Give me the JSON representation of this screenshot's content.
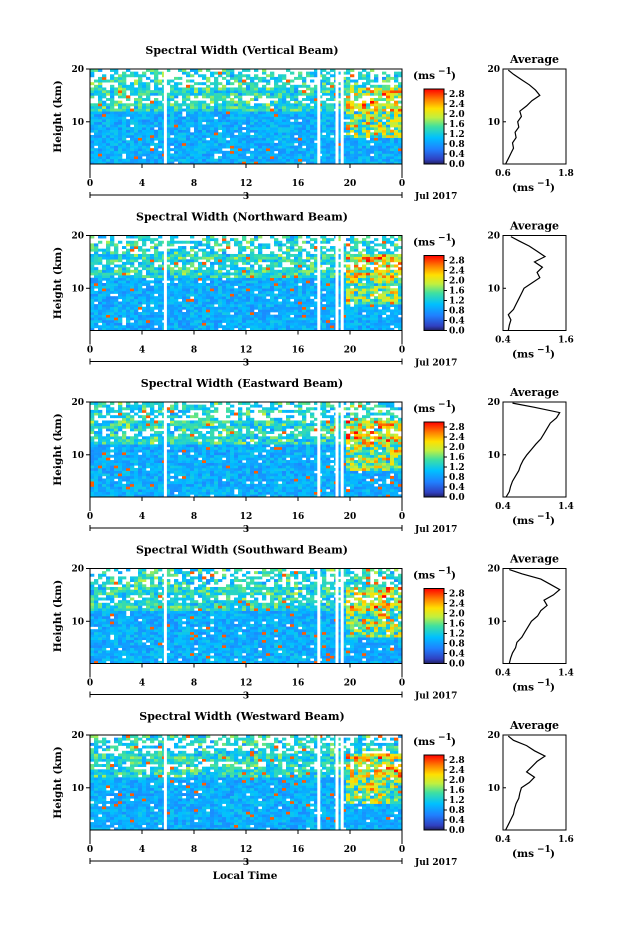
{
  "chart_data": [
    {
      "type": "heatmap",
      "title": "Spectral Width (Vertical Beam)",
      "ylabel": "Height (km)",
      "ylim": [
        2,
        20
      ],
      "yticks": [
        10,
        20
      ],
      "xlim": [
        0,
        24
      ],
      "xticks": [
        "0",
        "4",
        "8",
        "12",
        "16",
        "20",
        "0"
      ],
      "xmark": "3",
      "date_label": "Jul 2017",
      "colorbar": {
        "unit": "(ms",
        "unit_exp": "−1",
        "unit_close": ")",
        "ticks": [
          "0.0",
          "0.4",
          "0.8",
          "1.2",
          "1.6",
          "2.0",
          "2.4",
          "2.8"
        ],
        "range": [
          0,
          3
        ]
      },
      "gaps_hours": [
        5.8,
        17.6,
        19.0,
        19.4
      ],
      "profile": {
        "title": "Average",
        "xlabel": "(ms",
        "xlabel_exp": "−1",
        "xlabel_close": ")",
        "xlim": [
          0.6,
          1.8
        ],
        "xticks": [
          "0.6",
          "1.8"
        ],
        "yticks": [
          10,
          20
        ],
        "points": [
          [
            0.65,
            2
          ],
          [
            0.7,
            3
          ],
          [
            0.75,
            4
          ],
          [
            0.8,
            5
          ],
          [
            0.78,
            6
          ],
          [
            0.85,
            7
          ],
          [
            0.83,
            8
          ],
          [
            0.9,
            9
          ],
          [
            0.88,
            10
          ],
          [
            0.95,
            11
          ],
          [
            0.92,
            12
          ],
          [
            1.05,
            13
          ],
          [
            1.15,
            14
          ],
          [
            1.3,
            15
          ],
          [
            1.22,
            16
          ],
          [
            1.1,
            17
          ],
          [
            0.95,
            18
          ],
          [
            0.8,
            19
          ],
          [
            0.7,
            19.8
          ]
        ]
      }
    },
    {
      "type": "heatmap",
      "title": "Spectral Width (Northward Beam)",
      "ylabel": "Height (km)",
      "ylim": [
        2,
        20
      ],
      "yticks": [
        10,
        20
      ],
      "xlim": [
        0,
        24
      ],
      "xticks": [
        "0",
        "4",
        "8",
        "12",
        "16",
        "20",
        "0"
      ],
      "xmark": "3",
      "date_label": "Jul 2017",
      "colorbar": {
        "unit": "(ms",
        "unit_exp": "−1",
        "unit_close": ")",
        "ticks": [
          "0.0",
          "0.4",
          "0.8",
          "1.2",
          "1.6",
          "2.0",
          "2.4",
          "2.8"
        ],
        "range": [
          0,
          3
        ]
      },
      "gaps_hours": [
        5.8,
        17.6,
        19.0,
        19.4
      ],
      "profile": {
        "title": "Average",
        "xlabel": "(ms",
        "xlabel_exp": "−1",
        "xlabel_close": ")",
        "xlim": [
          0.4,
          1.6
        ],
        "xticks": [
          "0.4",
          "1.6"
        ],
        "yticks": [
          10,
          20
        ],
        "points": [
          [
            0.5,
            2
          ],
          [
            0.52,
            3
          ],
          [
            0.55,
            4
          ],
          [
            0.5,
            5
          ],
          [
            0.6,
            6
          ],
          [
            0.65,
            7
          ],
          [
            0.7,
            8
          ],
          [
            0.75,
            9
          ],
          [
            0.8,
            10
          ],
          [
            0.95,
            11
          ],
          [
            1.1,
            12
          ],
          [
            1.05,
            13
          ],
          [
            1.15,
            14
          ],
          [
            1.0,
            15
          ],
          [
            1.2,
            16
          ],
          [
            1.05,
            17
          ],
          [
            0.9,
            18
          ],
          [
            0.7,
            19
          ],
          [
            0.55,
            19.8
          ]
        ]
      }
    },
    {
      "type": "heatmap",
      "title": "Spectral Width (Eastward Beam)",
      "ylabel": "Height (km)",
      "ylim": [
        2,
        20
      ],
      "yticks": [
        10,
        20
      ],
      "xlim": [
        0,
        24
      ],
      "xticks": [
        "0",
        "4",
        "8",
        "12",
        "16",
        "20",
        "0"
      ],
      "xmark": "3",
      "date_label": "Jul 2017",
      "colorbar": {
        "unit": "(ms",
        "unit_exp": "−1",
        "unit_close": ")",
        "ticks": [
          "0.0",
          "0.4",
          "0.8",
          "1.2",
          "1.6",
          "2.0",
          "2.4",
          "2.8"
        ],
        "range": [
          0,
          3
        ]
      },
      "gaps_hours": [
        5.8,
        17.6,
        19.0,
        19.4
      ],
      "profile": {
        "title": "Average",
        "xlabel": "(ms",
        "xlabel_exp": "−1",
        "xlabel_close": ")",
        "xlim": [
          0.4,
          1.4
        ],
        "xticks": [
          "0.4",
          "1.4"
        ],
        "yticks": [
          10,
          20
        ],
        "points": [
          [
            0.45,
            2
          ],
          [
            0.5,
            3
          ],
          [
            0.52,
            4
          ],
          [
            0.55,
            5
          ],
          [
            0.6,
            6
          ],
          [
            0.65,
            7
          ],
          [
            0.68,
            8
          ],
          [
            0.72,
            9
          ],
          [
            0.78,
            10
          ],
          [
            0.85,
            11
          ],
          [
            0.92,
            12
          ],
          [
            1.0,
            13
          ],
          [
            1.05,
            14
          ],
          [
            1.1,
            15
          ],
          [
            1.15,
            16
          ],
          [
            1.25,
            17
          ],
          [
            1.3,
            18
          ],
          [
            0.9,
            19
          ],
          [
            0.55,
            19.8
          ]
        ]
      }
    },
    {
      "type": "heatmap",
      "title": "Spectral Width (Southward Beam)",
      "ylabel": "Height (km)",
      "ylim": [
        2,
        20
      ],
      "yticks": [
        10,
        20
      ],
      "xlim": [
        0,
        24
      ],
      "xticks": [
        "0",
        "4",
        "8",
        "12",
        "16",
        "20",
        "0"
      ],
      "xmark": "3",
      "date_label": "Jul 2017",
      "colorbar": {
        "unit": "(ms",
        "unit_exp": "−1",
        "unit_close": ")",
        "ticks": [
          "0.0",
          "0.4",
          "0.8",
          "1.2",
          "1.6",
          "2.0",
          "2.4",
          "2.8"
        ],
        "range": [
          0,
          3
        ]
      },
      "gaps_hours": [
        5.8,
        17.6,
        19.0,
        19.4
      ],
      "profile": {
        "title": "Average",
        "xlabel": "(ms",
        "xlabel_exp": "−1",
        "xlabel_close": ")",
        "xlim": [
          0.4,
          1.4
        ],
        "xticks": [
          "0.4",
          "1.4"
        ],
        "yticks": [
          10,
          20
        ],
        "points": [
          [
            0.5,
            2
          ],
          [
            0.52,
            3
          ],
          [
            0.55,
            4
          ],
          [
            0.6,
            5
          ],
          [
            0.62,
            6
          ],
          [
            0.7,
            7
          ],
          [
            0.75,
            8
          ],
          [
            0.8,
            9
          ],
          [
            0.85,
            10
          ],
          [
            0.95,
            11
          ],
          [
            1.0,
            12
          ],
          [
            1.1,
            13
          ],
          [
            1.05,
            14
          ],
          [
            1.2,
            15
          ],
          [
            1.3,
            16
          ],
          [
            1.15,
            17
          ],
          [
            1.0,
            18
          ],
          [
            0.7,
            19
          ],
          [
            0.5,
            19.8
          ]
        ]
      }
    },
    {
      "type": "heatmap",
      "title": "Spectral Width (Westward Beam)",
      "ylabel": "Height (km)",
      "ylim": [
        2,
        20
      ],
      "yticks": [
        10,
        20
      ],
      "xlim": [
        0,
        24
      ],
      "xticks": [
        "0",
        "4",
        "8",
        "12",
        "16",
        "20",
        "0"
      ],
      "xmark": "3",
      "date_label": "Jul 2017",
      "colorbar": {
        "unit": "(ms",
        "unit_exp": "−1",
        "unit_close": ")",
        "ticks": [
          "0.0",
          "0.4",
          "0.8",
          "1.2",
          "1.6",
          "2.0",
          "2.4",
          "2.8"
        ],
        "range": [
          0,
          3
        ]
      },
      "gaps_hours": [
        5.8,
        17.6,
        19.0,
        19.4
      ],
      "profile": {
        "title": "Average",
        "xlabel": "(ms",
        "xlabel_exp": "−1",
        "xlabel_close": ")",
        "xlim": [
          0.4,
          1.6
        ],
        "xticks": [
          "0.4",
          "1.6"
        ],
        "yticks": [
          10,
          20
        ],
        "points": [
          [
            0.45,
            2
          ],
          [
            0.5,
            3
          ],
          [
            0.55,
            4
          ],
          [
            0.6,
            5
          ],
          [
            0.62,
            6
          ],
          [
            0.65,
            7
          ],
          [
            0.7,
            8
          ],
          [
            0.72,
            9
          ],
          [
            0.75,
            10
          ],
          [
            0.9,
            11
          ],
          [
            1.0,
            12
          ],
          [
            0.85,
            13
          ],
          [
            0.95,
            14
          ],
          [
            1.05,
            15
          ],
          [
            1.2,
            16
          ],
          [
            1.0,
            17
          ],
          [
            0.85,
            18
          ],
          [
            0.6,
            19
          ],
          [
            0.5,
            19.8
          ]
        ]
      }
    }
  ],
  "footer": {
    "xlabel": "Local Time"
  }
}
